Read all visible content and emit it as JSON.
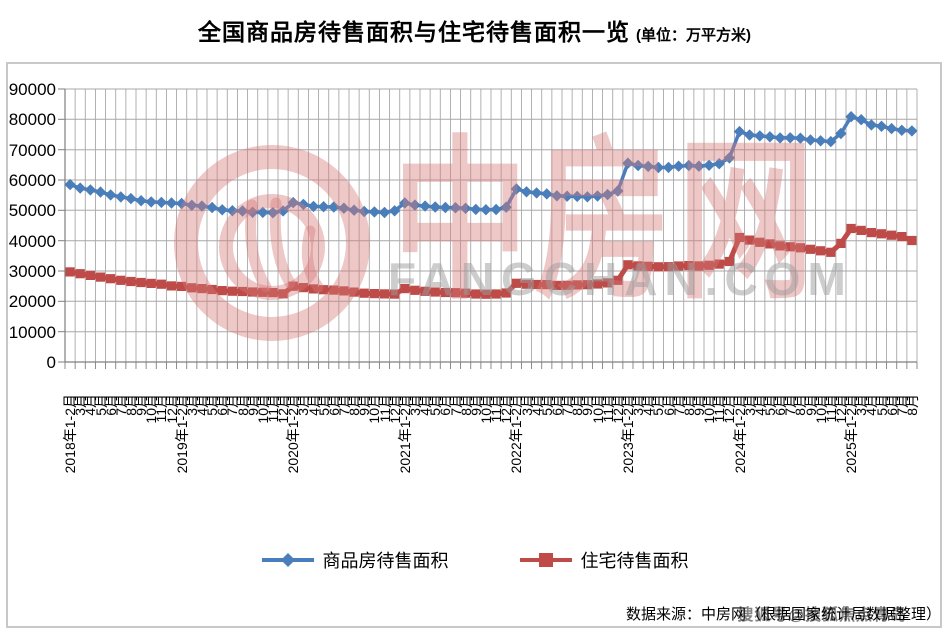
{
  "title": {
    "main": "全国商品房待售面积与住宅待售面积一览",
    "unit": "(单位：万平方米)"
  },
  "watermark": {
    "brand": "中房网",
    "domain": "FANGCHAN.COM",
    "sohu_badge": "搜狐号@搜狐焦点青岛"
  },
  "source_note": "数据来源：中房网（根据国家统计局数据整理）",
  "colors": {
    "series_commercial": "#4A7EBB",
    "series_residential": "#BE4B48",
    "gridline": "#A8A8A8",
    "axis": "#7F7F7F",
    "watermark_pink": "#D67A7A",
    "watermark_gray": "#9C9C9C"
  },
  "chart_data": {
    "type": "line",
    "title": "全国商品房待售面积与住宅待售面积一览",
    "unit_label": "万平方米",
    "xlabel": "",
    "ylabel": "",
    "ylim": [
      0,
      90000
    ],
    "yticks": [
      0,
      10000,
      20000,
      30000,
      40000,
      50000,
      60000,
      70000,
      80000,
      90000
    ],
    "grid": "both",
    "legend_position": "bottom",
    "x_labels": [
      "2018年1-2月",
      "3月",
      "4月",
      "5月",
      "6月",
      "7月",
      "8月",
      "9月",
      "10月",
      "11月",
      "12月",
      "2019年1-2月",
      "3月",
      "4月",
      "5月",
      "6月",
      "7月",
      "8月",
      "9月",
      "10月",
      "11月",
      "12月",
      "2020年1-2月",
      "3月",
      "4月",
      "5月",
      "6月",
      "7月",
      "8月",
      "9月",
      "10月",
      "11月",
      "12月",
      "2021年1-2月",
      "3月",
      "4月",
      "5月",
      "6月",
      "7月",
      "8月",
      "9月",
      "10月",
      "11月",
      "12月",
      "2022年1-2月",
      "3月",
      "4月",
      "5月",
      "6月",
      "7月",
      "8月",
      "9月",
      "10月",
      "11月",
      "12月",
      "2023年1-2月",
      "3月",
      "4月",
      "5月",
      "6月",
      "7月",
      "8月",
      "9月",
      "10月",
      "11月",
      "12月",
      "2024年1-2月",
      "3月",
      "4月",
      "5月",
      "6月",
      "7月",
      "8月",
      "9月",
      "10月",
      "11月",
      "12月",
      "2025年1-2月",
      "3月",
      "4月",
      "5月",
      "6月",
      "7月",
      "8月"
    ],
    "series": [
      {
        "name": "商品房待售面积",
        "marker": "diamond",
        "color": "#4A7EBB",
        "values": [
          58468,
          57329,
          56726,
          56010,
          55083,
          54428,
          53873,
          53191,
          52789,
          52627,
          52414,
          52251,
          51646,
          51380,
          50928,
          50162,
          49876,
          49784,
          49346,
          49323,
          49221,
          49821,
          52563,
          51968,
          51312,
          51184,
          51096,
          50691,
          50052,
          49606,
          49492,
          49287,
          49850,
          52425,
          51720,
          51380,
          51087,
          50919,
          50864,
          50665,
          50308,
          50223,
          50272,
          51023,
          57026,
          56113,
          55735,
          55433,
          54784,
          54655,
          54605,
          54468,
          54734,
          55203,
          56366,
          65528,
          64770,
          64487,
          64120,
          64159,
          64564,
          64795,
          64537,
          64835,
          65385,
          67295,
          75969,
          74833,
          74553,
          74256,
          73894,
          73926,
          73777,
          73177,
          72909,
          72645,
          75327,
          80864,
          79869,
          78169,
          77706,
          76948,
          76386,
          76199
        ]
      },
      {
        "name": "住宅待售面积",
        "marker": "square",
        "color": "#BE4B48",
        "values": [
          29700,
          29100,
          28550,
          28000,
          27450,
          26950,
          26550,
          26200,
          25900,
          25650,
          25091,
          24927,
          24474,
          24210,
          23916,
          23540,
          23333,
          23255,
          23074,
          22968,
          22874,
          22473,
          24987,
          24517,
          24085,
          23840,
          23708,
          23440,
          23034,
          22697,
          22540,
          22442,
          22379,
          24203,
          23648,
          23321,
          23089,
          22923,
          22850,
          22670,
          22431,
          22358,
          22406,
          22761,
          25953,
          25652,
          25545,
          25510,
          25249,
          25290,
          25425,
          25481,
          25725,
          26078,
          26947,
          32041,
          31679,
          31546,
          31393,
          31433,
          31662,
          31792,
          31683,
          31872,
          32281,
          33119,
          41040,
          40173,
          39466,
          38943,
          38283,
          37966,
          37662,
          37156,
          36669,
          36162,
          39088,
          44015,
          43380,
          42650,
          42250,
          41800,
          41350,
          40047
        ]
      }
    ]
  }
}
